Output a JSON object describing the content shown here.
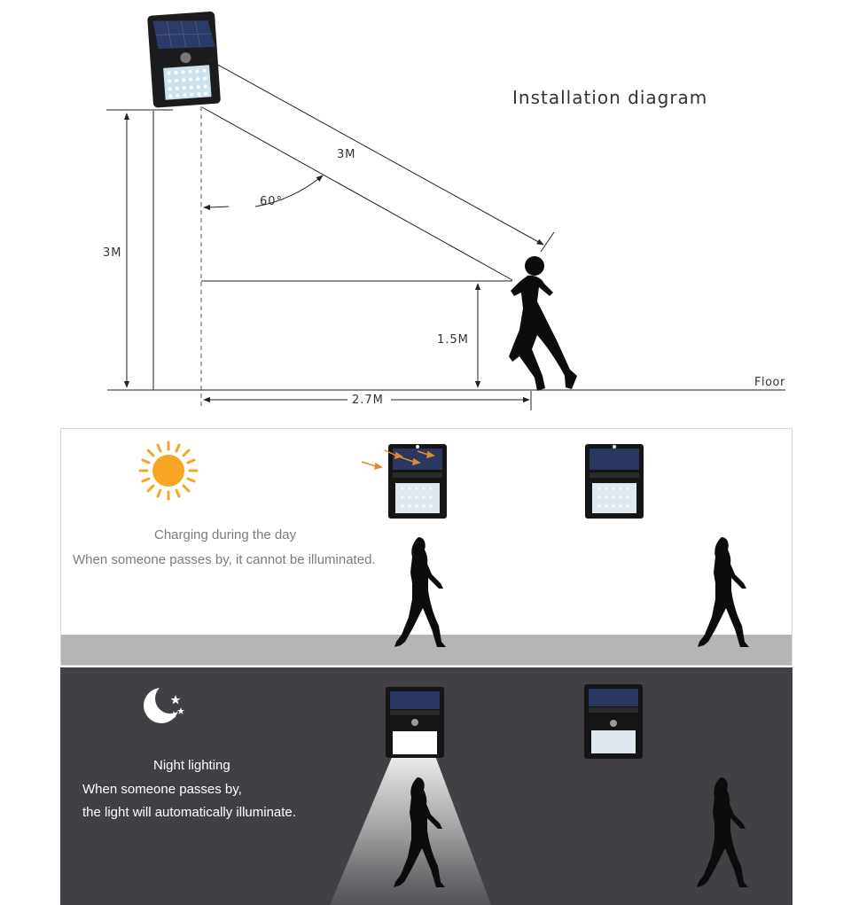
{
  "diagram": {
    "title": "Installation diagram",
    "mount_height_label": "3M",
    "sensor_range_label": "3M",
    "angle_label": "60°",
    "person_height_label": "1.5M",
    "horizontal_distance_label": "2.7M",
    "floor_label": "Floor"
  },
  "day": {
    "icon": "sun-icon",
    "line1": "Charging during the day",
    "line2": "When someone passes by, it cannot be illuminated.",
    "colors": {
      "sun": "#f6a623",
      "arrows": "#e08a2c",
      "floor": "#b5b5b5"
    }
  },
  "night": {
    "icon": "moon-stars-icon",
    "line1": "Night lighting",
    "line2": "When someone passes by,",
    "line3": "the light will automatically illuminate.",
    "colors": {
      "background": "#424045",
      "beam": "#ffffff"
    }
  }
}
